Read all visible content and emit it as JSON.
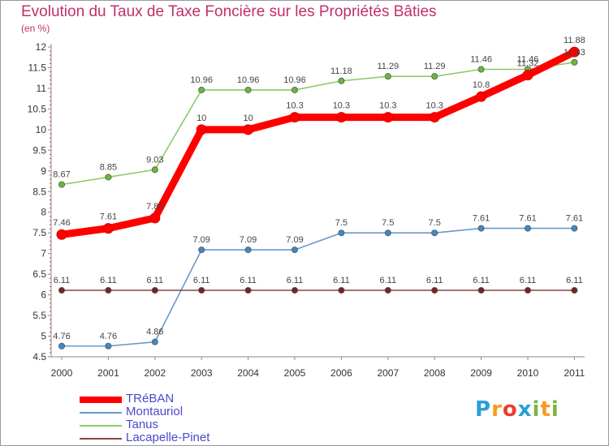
{
  "title": "Evolution du Taux de Taxe Foncière sur les Propriétés Bâties",
  "subtitle": "(en %)",
  "logo": {
    "text": "Proxiti",
    "letters": [
      "P",
      "r",
      "o",
      "x",
      "i",
      "t",
      "i"
    ],
    "colors": [
      "#2a9fd6",
      "#f29d1f",
      "#e8402f",
      "#2a9fd6",
      "#7ab642",
      "#f29d1f",
      "#7ab642"
    ]
  },
  "chart_data": {
    "type": "line",
    "title": "Evolution du Taux de Taxe Foncière sur les Propriétés Bâties",
    "ylabel": "(en %)",
    "xlabel": "",
    "x": [
      "2000",
      "2001",
      "2002",
      "2003",
      "2004",
      "2005",
      "2006",
      "2007",
      "2008",
      "2009",
      "2010",
      "2011"
    ],
    "ylim": [
      4.5,
      12
    ],
    "yticks": [
      "4.5",
      "5",
      "5.5",
      "6",
      "6.5",
      "7",
      "7.5",
      "8",
      "8.5",
      "9",
      "9.5",
      "10",
      "10.5",
      "11",
      "11.5",
      "12"
    ],
    "grid": false,
    "legend_position": "bottom-left",
    "series": [
      {
        "name": "TRéBAN",
        "color": "#ff0000",
        "marker": "#ff0000",
        "emphasis": true,
        "values": [
          7.46,
          7.61,
          7.86,
          10,
          10,
          10.3,
          10.3,
          10.3,
          10.3,
          10.8,
          11.32,
          11.88
        ],
        "labels": [
          "7.46",
          "7.61",
          "7.86",
          "10",
          "10",
          "10.3",
          "10.3",
          "10.3",
          "10.3",
          "10.8",
          "11.32",
          "11.88"
        ]
      },
      {
        "name": "Montauriol",
        "color": "#6699cc",
        "marker": "#3f88c5",
        "emphasis": false,
        "values": [
          4.76,
          4.76,
          4.86,
          7.09,
          7.09,
          7.09,
          7.5,
          7.5,
          7.5,
          7.61,
          7.61,
          7.61
        ],
        "labels": [
          "4.76",
          "4.76",
          "4.86",
          "7.09",
          "7.09",
          "7.09",
          "7.5",
          "7.5",
          "7.5",
          "7.61",
          "7.61",
          "7.61"
        ]
      },
      {
        "name": "Tanus",
        "color": "#88cc66",
        "marker": "#66bb33",
        "emphasis": false,
        "values": [
          8.67,
          8.85,
          9.03,
          10.96,
          10.96,
          10.96,
          11.18,
          11.29,
          11.29,
          11.46,
          11.46,
          11.63
        ],
        "labels": [
          "8.67",
          "8.85",
          "9.03",
          "10.96",
          "10.96",
          "10.96",
          "11.18",
          "11.29",
          "11.29",
          "11.46",
          "11.46",
          "11.63"
        ]
      },
      {
        "name": "Lacapelle-Pinet",
        "color": "#884444",
        "marker": "#772222",
        "emphasis": false,
        "values": [
          6.11,
          6.11,
          6.11,
          6.11,
          6.11,
          6.11,
          6.11,
          6.11,
          6.11,
          6.11,
          6.11,
          6.11
        ],
        "labels": [
          "6.11",
          "6.11",
          "6.11",
          "6.11",
          "6.11",
          "6.11",
          "6.11",
          "6.11",
          "6.11",
          "6.11",
          "6.11",
          "6.11"
        ]
      }
    ]
  }
}
